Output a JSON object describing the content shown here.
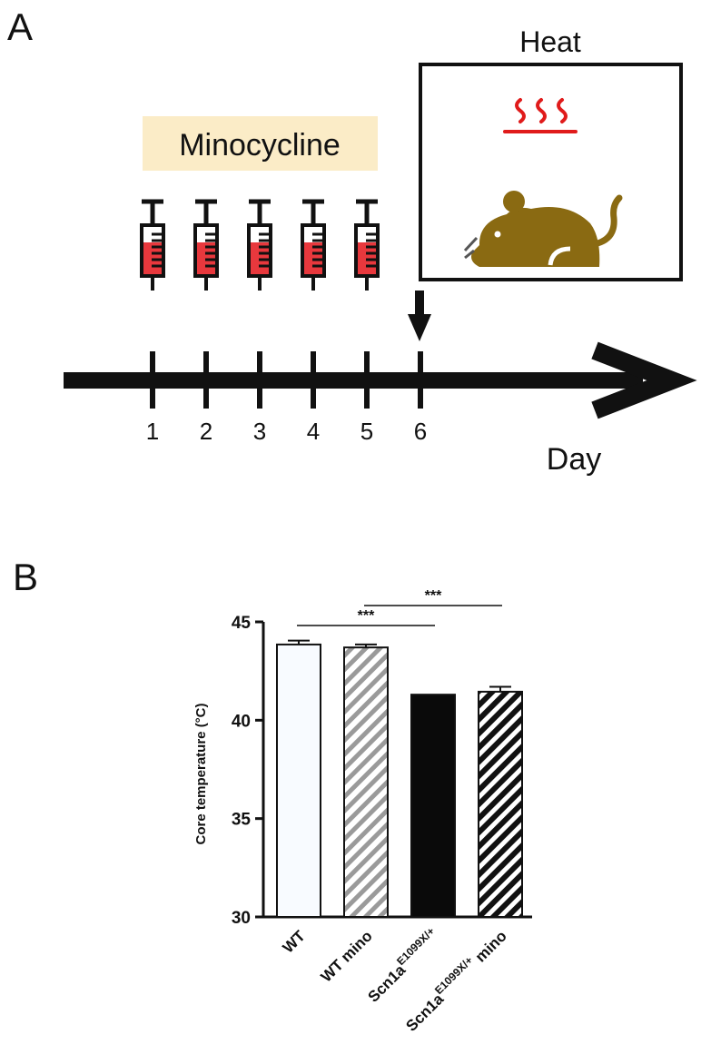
{
  "panel_a": {
    "label": "A",
    "drug": "Minocycline",
    "heat_label": "Heat",
    "axis_label": "Day",
    "days": [
      "1",
      "2",
      "3",
      "4",
      "5",
      "6"
    ],
    "injection_days": [
      1,
      2,
      3,
      4,
      5
    ],
    "heat_day": 6,
    "colors": {
      "drug_box": "#fbecc7",
      "syringe_fill": "#e8383d",
      "heat_waves": "#e01b1b",
      "mouse": "#8a6a12"
    },
    "icons": [
      "syringe-icon",
      "heat-waves-icon",
      "mouse-icon",
      "down-arrow-icon"
    ]
  },
  "panel_b": {
    "label": "B"
  },
  "chart_data": {
    "type": "bar",
    "categories": [
      "WT",
      "WT mino",
      "Scn1a^E1099X/+",
      "Scn1a^E1099X/+ mino"
    ],
    "category_parts": [
      {
        "base": "WT",
        "sup": "",
        "tail": ""
      },
      {
        "base": "WT mino",
        "sup": "",
        "tail": ""
      },
      {
        "base": "Scn1a",
        "sup": "E1099X/+",
        "tail": ""
      },
      {
        "base": "Scn1a",
        "sup": "E1099X/+",
        "tail": " mino"
      }
    ],
    "values": [
      43.85,
      43.7,
      41.3,
      41.45
    ],
    "errors": [
      0.2,
      0.15,
      0,
      0.25
    ],
    "bar_styles": [
      "white",
      "gray-hatched",
      "black",
      "black-hatched"
    ],
    "ylabel": "Core temperature (°C)",
    "xlabel": "",
    "ylim": [
      30,
      45
    ],
    "yticks": [
      30,
      35,
      40,
      45
    ],
    "significance": [
      {
        "from": 0,
        "to": 2,
        "label": "***"
      },
      {
        "from": 1,
        "to": 3,
        "label": "***"
      }
    ],
    "grid": false
  }
}
